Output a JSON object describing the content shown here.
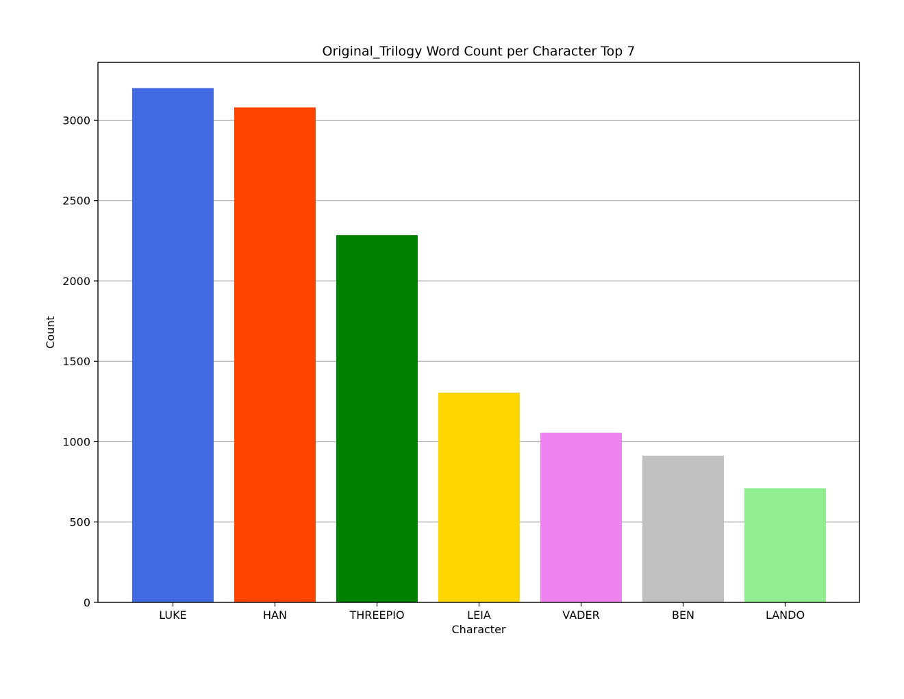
{
  "chart_data": {
    "type": "bar",
    "title": "Original_Trilogy Word Count per Character Top 7",
    "xlabel": "Character",
    "ylabel": "Count",
    "categories": [
      "LUKE",
      "HAN",
      "THREEPIO",
      "LEIA",
      "VADER",
      "BEN",
      "LANDO"
    ],
    "values": [
      3200,
      3080,
      2285,
      1305,
      1055,
      913,
      710
    ],
    "colors": [
      "#4169e1",
      "#ff4500",
      "#008000",
      "#ffd700",
      "#ee82ee",
      "#c0c0c0",
      "#90ee90"
    ],
    "ylim": [
      0,
      3360
    ],
    "yticks": [
      0,
      500,
      1000,
      1500,
      2000,
      2500,
      3000
    ],
    "grid": "y-axis only",
    "legend": "none"
  }
}
